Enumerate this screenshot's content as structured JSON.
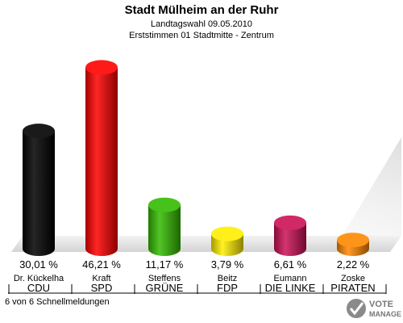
{
  "header": {
    "title": "Stadt Mülheim an der Ruhr",
    "subtitle_1": "Landtagswahl 09.05.2010",
    "subtitle_2": "Erststimmen 01 Stadtmitte - Zentrum"
  },
  "chart_data": {
    "type": "bar",
    "style": "3d-cylinder",
    "categories": [
      "CDU",
      "SPD",
      "GRÜNE",
      "FDP",
      "DIE LINKE",
      "PIRATEN"
    ],
    "candidates": [
      "Dr. Kückelha",
      "Kraft",
      "Steffens",
      "Beitz",
      "Eumann",
      "Zoske"
    ],
    "values": [
      30.01,
      46.21,
      11.17,
      3.79,
      6.61,
      2.22
    ],
    "value_labels": [
      "30,01 %",
      "46,21 %",
      "11,17 %",
      "3,79 %",
      "6,61 %",
      "2,22 %"
    ],
    "colors": [
      "#000000",
      "#ff0000",
      "#33bb00",
      "#ffee00",
      "#cc1155",
      "#ff8800"
    ],
    "ylim": [
      0,
      50
    ],
    "grid": false,
    "legend": "none"
  },
  "footer": {
    "status": "6 von 6 Schnellmeldungen"
  },
  "logo": {
    "text_1": "VOTE",
    "text_2": "MANAGER"
  }
}
